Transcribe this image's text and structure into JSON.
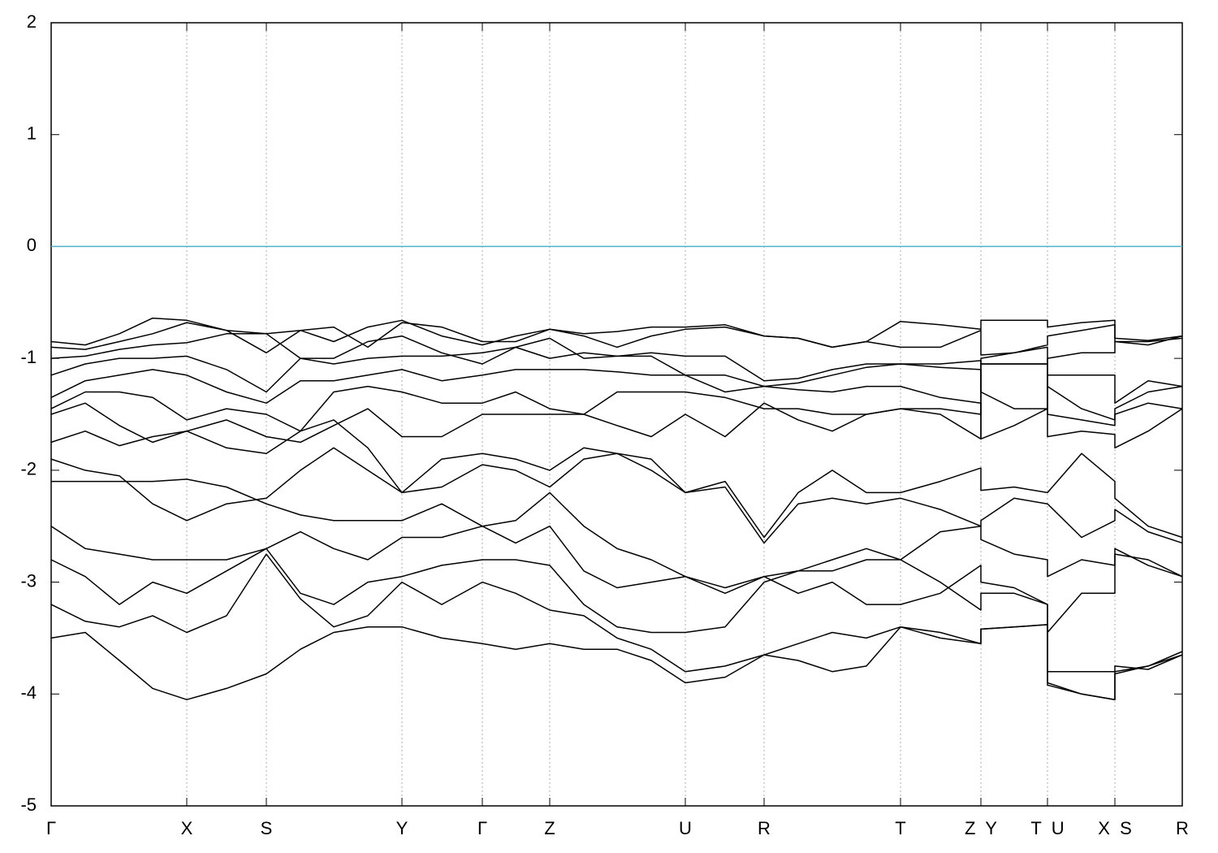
{
  "chart_data": {
    "type": "line",
    "xlim": [
      0,
      1393
    ],
    "ylim": [
      -5,
      2
    ],
    "yticks": [
      -5,
      -4,
      -3,
      -2,
      -1,
      0,
      1,
      2
    ],
    "xticks": [
      {
        "value": 0,
        "label": "Γ"
      },
      {
        "value": 167,
        "label": "X"
      },
      {
        "value": 265,
        "label": "S"
      },
      {
        "value": 432,
        "label": "Y"
      },
      {
        "value": 531,
        "label": "Γ"
      },
      {
        "value": 614,
        "label": "Z"
      },
      {
        "value": 781,
        "label": "U"
      },
      {
        "value": 878,
        "label": "R"
      },
      {
        "value": 1046,
        "label": "T"
      },
      {
        "value": 1145,
        "label": "Z  Y"
      },
      {
        "value": 1227,
        "label": "T  U"
      },
      {
        "value": 1310,
        "label": "X  S"
      },
      {
        "value": 1393,
        "label": "R"
      }
    ],
    "grid": true,
    "hlines": [
      {
        "y": 0,
        "color": "#4db3c8"
      }
    ],
    "x": [
      0,
      42,
      84,
      125,
      167,
      216,
      265,
      307,
      348,
      390,
      432,
      481,
      531,
      572,
      614,
      656,
      697,
      739,
      781,
      830,
      878,
      920,
      962,
      1004,
      1046,
      1095,
      1145,
      1145,
      1186,
      1227,
      1227,
      1269,
      1310,
      1310,
      1351,
      1393
    ],
    "series": [
      {
        "color": "#000000",
        "values": [
          -0.85,
          -0.88,
          -0.78,
          -0.64,
          -0.66,
          -0.75,
          -0.78,
          -0.75,
          -0.85,
          -0.72,
          -0.66,
          -0.8,
          -0.88,
          -0.8,
          -0.74,
          -0.78,
          -0.76,
          -0.72,
          -0.72,
          -0.7,
          -0.8,
          -0.82,
          -0.9,
          -0.85,
          -0.67,
          -0.7,
          -0.74,
          -0.66,
          -0.66,
          -0.66,
          -0.72,
          -0.68,
          -0.66,
          -0.82,
          -0.84,
          -0.8
        ]
      },
      {
        "color": "#000000",
        "values": [
          -0.9,
          -0.92,
          -0.85,
          -0.78,
          -0.68,
          -0.75,
          -0.95,
          -0.75,
          -0.72,
          -0.9,
          -0.68,
          -0.72,
          -0.85,
          -0.85,
          -0.74,
          -0.8,
          -0.9,
          -0.8,
          -0.74,
          -0.72,
          -0.8,
          -0.82,
          -0.9,
          -0.85,
          -0.9,
          -0.9,
          -0.75,
          -0.97,
          -0.95,
          -0.88,
          -0.8,
          -0.75,
          -0.7,
          -0.85,
          -0.85,
          -0.82
        ]
      },
      {
        "color": "#000000",
        "values": [
          -1.0,
          -0.98,
          -0.92,
          -0.88,
          -0.86,
          -0.78,
          -0.78,
          -1.0,
          -1.0,
          -0.85,
          -0.8,
          -0.95,
          -1.05,
          -0.9,
          -0.82,
          -1.0,
          -0.98,
          -0.95,
          -0.98,
          -0.98,
          -1.2,
          -1.18,
          -1.1,
          -1.05,
          -1.05,
          -1.05,
          -1.02,
          -1.05,
          -1.05,
          -1.05,
          -1.0,
          -0.95,
          -0.95,
          -0.85,
          -0.88,
          -0.8
        ]
      },
      {
        "color": "#000000",
        "values": [
          -1.15,
          -1.05,
          -1.0,
          -1.0,
          -0.98,
          -1.1,
          -1.3,
          -1.0,
          -1.05,
          -1.0,
          -0.98,
          -0.98,
          -0.95,
          -0.9,
          -1.0,
          -0.95,
          -0.98,
          -0.98,
          -1.15,
          -1.15,
          -1.25,
          -1.22,
          -1.15,
          -1.08,
          -1.05,
          -1.08,
          -1.1,
          -1.3,
          -1.45,
          -1.45,
          -1.15,
          -1.15,
          -1.15,
          -1.4,
          -1.2,
          -1.25
        ]
      },
      {
        "color": "#000000",
        "values": [
          -1.35,
          -1.2,
          -1.15,
          -1.1,
          -1.15,
          -1.3,
          -1.4,
          -1.2,
          -1.2,
          -1.15,
          -1.1,
          -1.2,
          -1.15,
          -1.1,
          -1.1,
          -1.1,
          -1.12,
          -1.15,
          -1.15,
          -1.3,
          -1.25,
          -1.28,
          -1.3,
          -1.25,
          -1.25,
          -1.35,
          -1.4,
          -1.72,
          -1.6,
          -1.45,
          -1.25,
          -1.45,
          -1.55,
          -1.45,
          -1.3,
          -1.25
        ]
      },
      {
        "color": "#000000",
        "values": [
          -1.45,
          -1.3,
          -1.3,
          -1.35,
          -1.55,
          -1.45,
          -1.5,
          -1.65,
          -1.3,
          -1.25,
          -1.3,
          -1.4,
          -1.4,
          -1.3,
          -1.45,
          -1.5,
          -1.3,
          -1.3,
          -1.3,
          -1.35,
          -1.45,
          -1.45,
          -1.5,
          -1.5,
          -1.45,
          -1.45,
          -1.5,
          -1.0,
          -0.95,
          -0.9,
          -1.5,
          -1.55,
          -1.6,
          -1.5,
          -1.4,
          -1.45
        ]
      },
      {
        "color": "#000000",
        "values": [
          -1.5,
          -1.4,
          -1.6,
          -1.75,
          -1.65,
          -1.55,
          -1.7,
          -1.75,
          -1.6,
          -1.45,
          -1.7,
          -1.7,
          -1.5,
          -1.5,
          -1.5,
          -1.5,
          -1.6,
          -1.7,
          -1.5,
          -1.7,
          -1.4,
          -1.55,
          -1.65,
          -1.5,
          -1.45,
          -1.5,
          -1.72,
          -1.05,
          -1.05,
          -1.05,
          -1.7,
          -1.65,
          -1.68,
          -1.8,
          -1.65,
          -1.45
        ]
      },
      {
        "color": "#000000",
        "values": [
          -1.75,
          -1.65,
          -1.78,
          -1.7,
          -1.65,
          -1.8,
          -1.85,
          -1.65,
          -1.55,
          -1.8,
          -2.2,
          -1.9,
          -1.85,
          -1.9,
          -2.0,
          -1.8,
          -1.85,
          -1.9,
          -2.2,
          -2.1,
          -2.6,
          -2.2,
          -2.0,
          -2.2,
          -2.2,
          -2.1,
          -1.98,
          -2.18,
          -2.15,
          -2.2,
          -2.2,
          -1.85,
          -2.1,
          -2.25,
          -2.5,
          -2.6
        ]
      },
      {
        "color": "#000000",
        "values": [
          -1.9,
          -2.0,
          -2.05,
          -2.3,
          -2.45,
          -2.3,
          -2.25,
          -2.0,
          -1.8,
          -2.0,
          -2.2,
          -2.15,
          -1.95,
          -2.0,
          -2.15,
          -1.9,
          -1.85,
          -2.0,
          -2.2,
          -2.15,
          -2.65,
          -2.3,
          -2.25,
          -2.3,
          -2.25,
          -2.35,
          -2.5,
          -2.45,
          -2.25,
          -2.3,
          -2.3,
          -2.6,
          -2.45,
          -2.35,
          -2.55,
          -2.65
        ]
      },
      {
        "color": "#000000",
        "values": [
          -2.1,
          -2.1,
          -2.1,
          -2.1,
          -2.08,
          -2.15,
          -2.3,
          -2.4,
          -2.45,
          -2.45,
          -2.45,
          -2.3,
          -2.5,
          -2.45,
          -2.2,
          -2.5,
          -2.7,
          -2.8,
          -2.95,
          -3.1,
          -2.95,
          -2.9,
          -2.8,
          -2.7,
          -2.8,
          -2.55,
          -2.5,
          -2.62,
          -2.75,
          -2.8,
          -2.95,
          -2.8,
          -2.85,
          -2.7,
          -2.85,
          -2.95
        ]
      },
      {
        "color": "#000000",
        "values": [
          -2.5,
          -2.7,
          -2.75,
          -2.8,
          -2.8,
          -2.8,
          -2.7,
          -2.55,
          -2.7,
          -2.8,
          -2.6,
          -2.6,
          -2.5,
          -2.65,
          -2.5,
          -2.9,
          -3.05,
          -3.0,
          -2.95,
          -3.05,
          -2.95,
          -3.1,
          -3.0,
          -3.2,
          -3.2,
          -3.1,
          -2.85,
          -3.0,
          -3.05,
          -3.2,
          -3.45,
          -3.1,
          -3.1,
          -2.75,
          -2.8,
          -2.95
        ]
      },
      {
        "color": "#000000",
        "values": [
          -2.8,
          -2.95,
          -3.2,
          -3.0,
          -3.1,
          -2.9,
          -2.7,
          -3.1,
          -3.2,
          -3.0,
          -2.95,
          -2.85,
          -2.8,
          -2.8,
          -2.85,
          -3.2,
          -3.4,
          -3.45,
          -3.45,
          -3.4,
          -3.0,
          -2.9,
          -2.9,
          -2.8,
          -2.8,
          -3.0,
          -3.25,
          -3.1,
          -3.1,
          -3.2,
          -3.8,
          -3.8,
          -3.8,
          -3.75,
          -3.78,
          -3.65
        ]
      },
      {
        "color": "#000000",
        "values": [
          -3.2,
          -3.35,
          -3.4,
          -3.3,
          -3.45,
          -3.3,
          -2.75,
          -3.15,
          -3.4,
          -3.3,
          -3.0,
          -3.2,
          -3.0,
          -3.1,
          -3.25,
          -3.3,
          -3.5,
          -3.6,
          -3.8,
          -3.75,
          -3.65,
          -3.55,
          -3.45,
          -3.5,
          -3.4,
          -3.45,
          -3.55,
          -3.42,
          -3.4,
          -3.38,
          -3.9,
          -4.0,
          -4.05,
          -3.8,
          -3.75,
          -3.62
        ]
      },
      {
        "color": "#000000",
        "values": [
          -3.5,
          -3.45,
          -3.7,
          -3.95,
          -4.05,
          -3.95,
          -3.82,
          -3.6,
          -3.45,
          -3.4,
          -3.4,
          -3.5,
          -3.55,
          -3.6,
          -3.55,
          -3.6,
          -3.6,
          -3.7,
          -3.9,
          -3.85,
          -3.65,
          -3.7,
          -3.8,
          -3.75,
          -3.4,
          -3.5,
          -3.55,
          -3.42,
          -3.4,
          -3.38,
          -3.92,
          -4.0,
          -4.05,
          -3.82,
          -3.75,
          -3.65
        ]
      }
    ]
  }
}
